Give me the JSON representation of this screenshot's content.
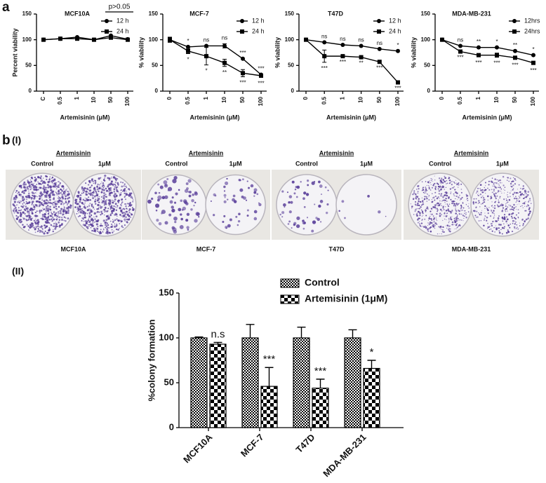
{
  "panels": {
    "a": "a",
    "b": "b",
    "b1": "(I)",
    "b2": "(II)"
  },
  "plates": [
    {
      "header": "Artemisinin",
      "left": "Control",
      "right": "1μM",
      "cell": "MCF10A"
    },
    {
      "header": "Artemisinin",
      "left": "Control",
      "right": "1μM",
      "cell": "MCF-7"
    },
    {
      "header": "Artemisinin",
      "left": "Control",
      "right": "1μM",
      "cell": "T47D"
    },
    {
      "header": "Artemisinin",
      "left": "Control",
      "right": "1μM",
      "cell": "MDA-MB-231"
    }
  ],
  "chart_data": [
    {
      "type": "line",
      "title": "MCF10A",
      "annotation": "p>0.05",
      "x_label": "Artemisinin (μM)",
      "y_label": "Percent viability",
      "categories": [
        "C",
        "0.5",
        "1",
        "10",
        "50",
        "100"
      ],
      "ylim": [
        0,
        150
      ],
      "yticks": [
        0,
        50,
        100,
        150
      ],
      "legend": "top-right",
      "series": [
        {
          "name": "12 h",
          "color": "#000000",
          "marker": "circle",
          "values": [
            100,
            102,
            105,
            100,
            108,
            101
          ]
        },
        {
          "name": "24 h",
          "color": "#000000",
          "marker": "square",
          "values": [
            100,
            102,
            102,
            100,
            104,
            100
          ]
        }
      ]
    },
    {
      "type": "line",
      "title": "MCF-7",
      "x_label": "Artemisinin (μM)",
      "y_label": "% viability",
      "categories": [
        "0",
        "0.5",
        "1",
        "10",
        "50",
        "100"
      ],
      "ylim": [
        0,
        150
      ],
      "yticks": [
        0,
        50,
        100,
        150
      ],
      "legend": "top-right",
      "series": [
        {
          "name": "12 h",
          "color": "#000000",
          "marker": "circle",
          "values": [
            100,
            86,
            88,
            88,
            63,
            32
          ],
          "errors": [
            5,
            null,
            null,
            4,
            null,
            null
          ],
          "sig": [
            null,
            "*",
            "ns",
            "ns",
            "***",
            "***"
          ]
        },
        {
          "name": "24 h",
          "color": "#000000",
          "marker": "square",
          "values": [
            100,
            78,
            68,
            55,
            35,
            30
          ],
          "errors": [
            4,
            5,
            17,
            7,
            7,
            3
          ],
          "sig": [
            null,
            "*",
            "*",
            "**",
            "***",
            "***"
          ]
        }
      ]
    },
    {
      "type": "line",
      "title": "T47D",
      "x_label": "Artemisinin (μM)",
      "y_label": "% viability",
      "categories": [
        "0",
        "0.5",
        "1",
        "10",
        "50",
        "100"
      ],
      "ylim": [
        0,
        150
      ],
      "yticks": [
        0,
        50,
        100,
        150
      ],
      "legend": "top-right",
      "series": [
        {
          "name": "12 h",
          "color": "#000000",
          "marker": "circle",
          "values": [
            100,
            95,
            90,
            88,
            82,
            78
          ],
          "sig": [
            null,
            "ns",
            "ns",
            "ns",
            "ns",
            "*"
          ]
        },
        {
          "name": "24 h",
          "color": "#000000",
          "marker": "square",
          "values": [
            100,
            68,
            68,
            66,
            57,
            17
          ],
          "errors": [
            null,
            12,
            null,
            null,
            null,
            null
          ],
          "sig": [
            null,
            "***",
            "***",
            "**",
            "***",
            "***"
          ]
        }
      ]
    },
    {
      "type": "line",
      "title": "MDA-MB-231",
      "x_label": "Artemisinin (μM)",
      "y_label": "% viability",
      "categories": [
        "0",
        "0.5",
        "1",
        "10",
        "50",
        "100"
      ],
      "ylim": [
        0,
        150
      ],
      "yticks": [
        0,
        50,
        100,
        150
      ],
      "legend": "top-right",
      "series": [
        {
          "name": "12hrs",
          "color": "#000000",
          "marker": "circle",
          "values": [
            100,
            88,
            85,
            85,
            78,
            70
          ],
          "sig": [
            null,
            "ns",
            "**",
            "*",
            "**",
            "*"
          ]
        },
        {
          "name": "24hrs",
          "color": "#000000",
          "marker": "square",
          "values": [
            100,
            77,
            70,
            70,
            65,
            55
          ],
          "errors": [
            null,
            null,
            3,
            4,
            3,
            3
          ],
          "sig": [
            null,
            "***",
            "***",
            "***",
            "***",
            "***"
          ]
        }
      ]
    },
    {
      "type": "bar",
      "y_label": "%colony formation",
      "categories": [
        "MCF10A",
        "MCF-7",
        "T47D",
        "MDA-MB-231"
      ],
      "ylim": [
        0,
        150
      ],
      "yticks": [
        0,
        50,
        100,
        150
      ],
      "legend": "top-right",
      "series": [
        {
          "name": "Control",
          "color": "#000000",
          "pattern": "fine",
          "values": [
            100,
            100,
            100,
            100
          ],
          "errors": [
            1,
            15,
            12,
            9
          ]
        },
        {
          "name": "Artemisinin (1μM)",
          "color": "#000000",
          "pattern": "coarse",
          "values": [
            93,
            46,
            44,
            66
          ],
          "errors": [
            2,
            21,
            10,
            9
          ],
          "sig": [
            "n.s",
            "***",
            "***",
            "*"
          ]
        }
      ]
    }
  ]
}
